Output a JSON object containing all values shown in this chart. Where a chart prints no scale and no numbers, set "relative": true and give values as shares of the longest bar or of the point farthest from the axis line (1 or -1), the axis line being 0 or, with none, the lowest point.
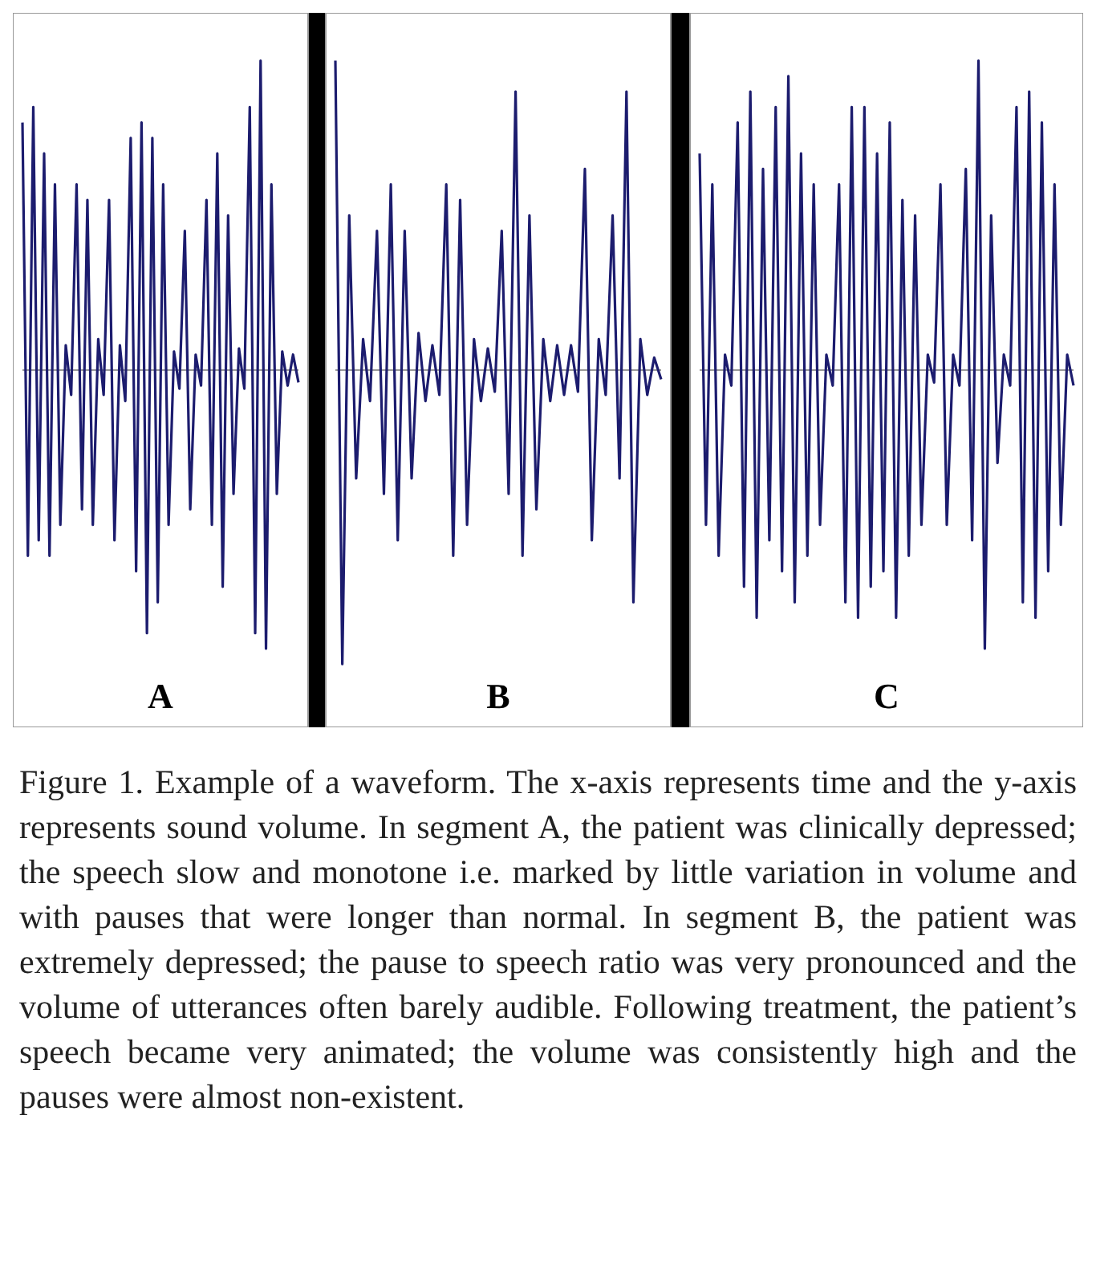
{
  "chart_data": [
    {
      "type": "line",
      "relative": true,
      "xlabel": "A",
      "color": "#1c1c6e",
      "categories": [
        null,
        null,
        null,
        null,
        null,
        null,
        null,
        null,
        null,
        null,
        null,
        null,
        null,
        null,
        null,
        null,
        null,
        null,
        null,
        null,
        null,
        null,
        null,
        null,
        null,
        null,
        null,
        null,
        null,
        null,
        null,
        null,
        null,
        null,
        null,
        null,
        null,
        null,
        null,
        null,
        null,
        null,
        null,
        null,
        null,
        null,
        null,
        null,
        null,
        null,
        null,
        null
      ],
      "values": [
        0.8,
        -0.6,
        0.85,
        -0.55,
        0.7,
        -0.6,
        0.6,
        -0.5,
        0.08,
        -0.08,
        0.6,
        -0.45,
        0.55,
        -0.5,
        0.1,
        -0.08,
        0.55,
        -0.55,
        0.08,
        -0.1,
        0.75,
        -0.65,
        0.8,
        -0.85,
        0.75,
        -0.75,
        0.6,
        -0.5,
        0.06,
        -0.06,
        0.45,
        -0.45,
        0.05,
        -0.05,
        0.55,
        -0.5,
        0.7,
        -0.7,
        0.5,
        -0.4,
        0.07,
        -0.06,
        0.85,
        -0.85,
        1.0,
        -0.9,
        0.6,
        -0.4,
        0.06,
        -0.05,
        0.05,
        -0.04
      ]
    },
    {
      "type": "line",
      "relative": true,
      "xlabel": "B",
      "color": "#1c1c6e",
      "categories": [
        null,
        null,
        null,
        null,
        null,
        null,
        null,
        null,
        null,
        null,
        null,
        null,
        null,
        null,
        null,
        null,
        null,
        null,
        null,
        null,
        null,
        null,
        null,
        null,
        null,
        null,
        null,
        null,
        null,
        null,
        null,
        null,
        null,
        null,
        null,
        null,
        null,
        null,
        null,
        null,
        null,
        null,
        null,
        null,
        null,
        null,
        null,
        null
      ],
      "values": [
        1.0,
        -0.95,
        0.5,
        -0.35,
        0.1,
        -0.1,
        0.45,
        -0.4,
        0.6,
        -0.55,
        0.45,
        -0.35,
        0.12,
        -0.1,
        0.08,
        -0.08,
        0.6,
        -0.6,
        0.55,
        -0.5,
        0.1,
        -0.1,
        0.07,
        -0.07,
        0.45,
        -0.4,
        0.9,
        -0.6,
        0.5,
        -0.45,
        0.1,
        -0.1,
        0.08,
        -0.08,
        0.08,
        -0.07,
        0.65,
        -0.55,
        0.1,
        -0.08,
        0.5,
        -0.35,
        0.9,
        -0.75,
        0.1,
        -0.08,
        0.04,
        -0.03
      ]
    },
    {
      "type": "line",
      "relative": true,
      "xlabel": "C",
      "color": "#1c1c6e",
      "categories": [
        null,
        null,
        null,
        null,
        null,
        null,
        null,
        null,
        null,
        null,
        null,
        null,
        null,
        null,
        null,
        null,
        null,
        null,
        null,
        null,
        null,
        null,
        null,
        null,
        null,
        null,
        null,
        null,
        null,
        null,
        null,
        null,
        null,
        null,
        null,
        null,
        null,
        null,
        null,
        null,
        null,
        null,
        null,
        null,
        null,
        null,
        null,
        null,
        null,
        null,
        null,
        null,
        null,
        null,
        null,
        null,
        null,
        null,
        null,
        null
      ],
      "values": [
        0.7,
        -0.5,
        0.6,
        -0.6,
        0.05,
        -0.05,
        0.8,
        -0.7,
        0.9,
        -0.8,
        0.65,
        -0.55,
        0.85,
        -0.65,
        0.95,
        -0.75,
        0.7,
        -0.6,
        0.6,
        -0.5,
        0.05,
        -0.05,
        0.6,
        -0.75,
        0.85,
        -0.8,
        0.85,
        -0.7,
        0.7,
        -0.65,
        0.8,
        -0.8,
        0.55,
        -0.6,
        0.5,
        -0.5,
        0.05,
        -0.04,
        0.6,
        -0.5,
        0.05,
        -0.05,
        0.65,
        -0.55,
        1.0,
        -0.9,
        0.5,
        -0.3,
        0.05,
        -0.05,
        0.85,
        -0.75,
        0.9,
        -0.8,
        0.8,
        -0.65,
        0.6,
        -0.5,
        0.05,
        -0.05
      ]
    },
    {
      "type": "other",
      "annotations": [
        "Figure 1. Example of a waveform. The x-axis represents time and the y-axis represents sound volume. In segment A, the patient was clinically depressed; the speech slow and monotone i.e. marked by little variation in volume and with pauses that were longer than normal. In segment B, the patient was extremely depressed; the pause to speech ratio was very pronounced and the volume of utterances often barely audible. Following treatment, the patient’s speech became very animated; the volume was consistently high and the pauses were almost non-existent."
      ]
    }
  ]
}
